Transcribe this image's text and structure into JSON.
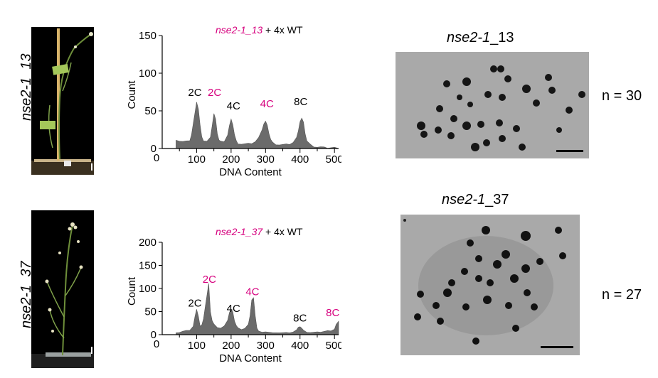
{
  "rows": [
    {
      "id": "13",
      "label": "nse2-1_13",
      "chart_title": {
        "line": "nse2-1_13",
        "rest": " + 4x WT"
      },
      "spread_title": {
        "line": "nse2-1",
        "suffix": "_13"
      },
      "count_label": "n = 30"
    },
    {
      "id": "37",
      "label": "nse2-1_37",
      "chart_title": {
        "line": "nse2-1_37",
        "rest": " + 4x WT"
      },
      "spread_title": {
        "line": "nse2-1",
        "suffix": "_37"
      },
      "count_label": "n = 27"
    }
  ],
  "colors": {
    "highlight": "#d6007e",
    "histogram": "#6b6b6b",
    "spread_bg": "#a9a9a9"
  },
  "chart_data": [
    {
      "type": "area",
      "title": "nse2-1_13 + 4x WT",
      "xlabel": "DNA Content",
      "ylabel": "Count",
      "xlim": [
        0,
        512
      ],
      "ylim": [
        0,
        150
      ],
      "xticks": [
        100,
        200,
        300,
        400,
        500
      ],
      "yticks": [
        0,
        50,
        100,
        150
      ],
      "series": [
        {
          "x": [
            40,
            50,
            60,
            70,
            80,
            85,
            90,
            95,
            100,
            105,
            110,
            115,
            120,
            130,
            140,
            145,
            150,
            155,
            160,
            165,
            170,
            180,
            190,
            195,
            200,
            205,
            210,
            215,
            220,
            230,
            240,
            250,
            260,
            270,
            280,
            290,
            295,
            300,
            305,
            310,
            315,
            320,
            330,
            340,
            350,
            360,
            370,
            380,
            390,
            395,
            400,
            405,
            410,
            415,
            420,
            430,
            440,
            450,
            460,
            470,
            480,
            490,
            500,
            512
          ],
          "y": [
            12,
            10,
            9,
            9,
            11,
            18,
            32,
            48,
            62,
            52,
            30,
            16,
            10,
            9,
            16,
            30,
            46,
            38,
            20,
            11,
            9,
            10,
            18,
            30,
            38,
            32,
            18,
            10,
            7,
            6,
            6,
            6,
            7,
            9,
            14,
            26,
            33,
            36,
            30,
            20,
            12,
            8,
            6,
            5,
            5,
            5,
            6,
            8,
            14,
            24,
            36,
            40,
            34,
            20,
            10,
            5,
            3,
            2,
            2,
            1,
            1,
            1,
            1,
            1
          ]
        }
      ],
      "peak_labels": [
        {
          "text": "2C",
          "x": 95,
          "y": 66,
          "highlight": false
        },
        {
          "text": "2C",
          "x": 152,
          "y": 66,
          "highlight": true
        },
        {
          "text": "4C",
          "x": 207,
          "y": 48,
          "highlight": false
        },
        {
          "text": "4C",
          "x": 304,
          "y": 51,
          "highlight": true
        },
        {
          "text": "8C",
          "x": 402,
          "y": 54,
          "highlight": false
        }
      ]
    },
    {
      "type": "area",
      "title": "nse2-1_37 + 4x WT",
      "xlabel": "DNA Content",
      "ylabel": "Count",
      "xlim": [
        0,
        512
      ],
      "ylim": [
        0,
        200
      ],
      "xticks": [
        100,
        200,
        300,
        400,
        500
      ],
      "yticks": [
        0,
        50,
        100,
        150,
        200
      ],
      "series": [
        {
          "x": [
            40,
            50,
            60,
            70,
            80,
            90,
            95,
            100,
            105,
            110,
            115,
            120,
            125,
            130,
            135,
            140,
            145,
            150,
            160,
            170,
            180,
            190,
            195,
            200,
            205,
            210,
            215,
            220,
            230,
            240,
            250,
            255,
            260,
            265,
            270,
            275,
            280,
            290,
            300,
            320,
            340,
            360,
            370,
            380,
            390,
            395,
            400,
            405,
            410,
            420,
            430,
            440,
            450,
            460,
            470,
            480,
            490,
            500,
            505,
            512
          ],
          "y": [
            5,
            5,
            7,
            8,
            10,
            18,
            38,
            56,
            40,
            18,
            20,
            35,
            60,
            85,
            112,
            50,
            30,
            22,
            16,
            14,
            18,
            32,
            48,
            55,
            48,
            30,
            20,
            14,
            12,
            14,
            22,
            40,
            76,
            80,
            40,
            15,
            8,
            5,
            5,
            5,
            4,
            4,
            5,
            6,
            10,
            15,
            18,
            14,
            9,
            6,
            5,
            5,
            5,
            6,
            7,
            8,
            9,
            12,
            22,
            28
          ]
        }
      ],
      "peak_labels": [
        {
          "text": "2C",
          "x": 95,
          "y": 55,
          "highlight": false
        },
        {
          "text": "2C",
          "x": 137,
          "y": 106,
          "highlight": true
        },
        {
          "text": "4C",
          "x": 207,
          "y": 43,
          "highlight": false
        },
        {
          "text": "4C",
          "x": 262,
          "y": 79,
          "highlight": true
        },
        {
          "text": "8C",
          "x": 400,
          "y": 22,
          "highlight": false
        },
        {
          "text": "8C",
          "x": 495,
          "y": 34,
          "highlight": true
        }
      ]
    }
  ]
}
